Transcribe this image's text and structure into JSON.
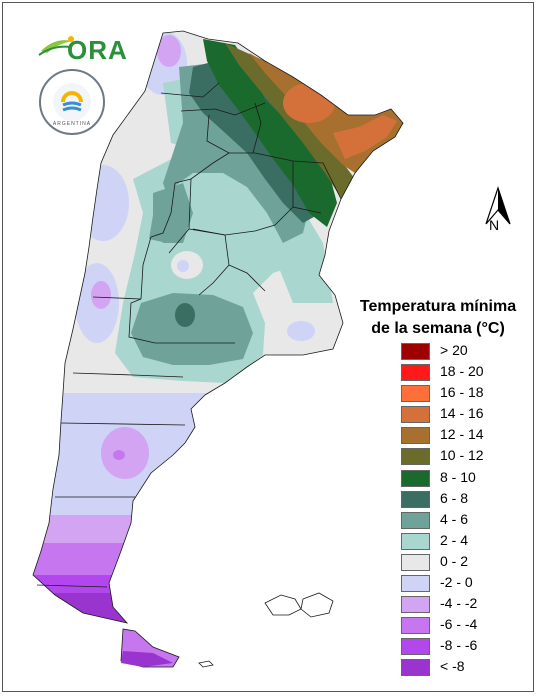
{
  "legend": {
    "title_line1": "Temperatura mínima",
    "title_line2": "de la semana (°C)",
    "items": [
      {
        "label": "> 20",
        "color": "#9c0000"
      },
      {
        "label": "18 - 20",
        "color": "#ff1a1a"
      },
      {
        "label": "16 - 18",
        "color": "#ff6f3a"
      },
      {
        "label": "14 - 16",
        "color": "#d4703a"
      },
      {
        "label": "12 - 14",
        "color": "#a8702f"
      },
      {
        "label": "10 - 12",
        "color": "#6b6b2c"
      },
      {
        "label": "8 - 10",
        "color": "#1a6a2e"
      },
      {
        "label": "6 - 8",
        "color": "#3b6e63"
      },
      {
        "label": "4 - 6",
        "color": "#6fa39a"
      },
      {
        "label": "2 - 4",
        "color": "#a9d6cf"
      },
      {
        "label": "0 - 2",
        "color": "#e8e8e8"
      },
      {
        "label": "-2 - 0",
        "color": "#cfd4f7"
      },
      {
        "label": "-4 - -2",
        "color": "#d2a4f2"
      },
      {
        "label": "-6 - -4",
        "color": "#c677f0"
      },
      {
        "label": "-8 - -6",
        "color": "#b347ee"
      },
      {
        "label": "< -8",
        "color": "#9a34cf"
      }
    ]
  },
  "north_arrow": {
    "label": "N"
  },
  "logos": {
    "ora_text": "ORA",
    "smn_text": "ARGENTINA"
  }
}
